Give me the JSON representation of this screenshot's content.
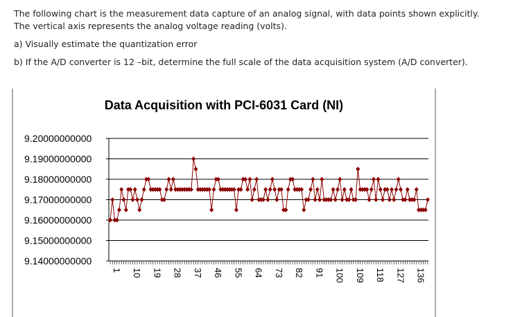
{
  "question": {
    "intro": [
      "The following chart is the measurement data capture of an analog signal, with data points shown explicitly.",
      "The vertical axis represents the analog voltage reading (volts)."
    ],
    "parts": [
      "a) Visually estimate the quantization error",
      "b) If the A/D converter is 12 –bit, determine the full scale of the data acquisition system (A/D converter)."
    ]
  },
  "chart_data": {
    "type": "line",
    "title": "Data Acquisition with PCI-6031 Card (NI)",
    "categories": [
      1,
      null,
      null,
      null,
      null,
      null,
      null,
      null,
      null,
      10,
      null,
      null,
      null,
      null,
      null,
      null,
      null,
      null,
      19,
      null,
      null,
      null,
      null,
      null,
      null,
      null,
      null,
      28,
      null,
      null,
      null,
      null,
      null,
      null,
      null,
      null,
      37,
      null,
      null,
      null,
      null,
      null,
      null,
      null,
      null,
      46,
      null,
      null,
      null,
      null,
      null,
      null,
      null,
      null,
      55,
      null,
      null,
      null,
      null,
      null,
      null,
      null,
      null,
      64,
      null,
      null,
      null,
      null,
      null,
      null,
      null,
      null,
      73,
      null,
      null,
      null,
      null,
      null,
      null,
      null,
      null,
      82,
      null,
      null,
      null,
      null,
      null,
      null,
      null,
      null,
      91,
      null,
      null,
      null,
      null,
      null,
      null,
      null,
      null,
      100,
      null,
      null,
      null,
      null,
      null,
      null,
      null,
      null,
      109,
      null,
      null,
      null,
      null,
      null,
      null,
      null,
      null,
      118,
      null,
      null,
      null,
      null,
      null,
      null,
      null,
      null,
      127,
      null,
      null,
      null,
      null,
      null,
      null,
      null,
      null,
      136,
      null,
      null,
      null,
      null,
      null,
      null
    ],
    "series": [
      {
        "color": "#8b0000",
        "values": [
          9.16,
          9.17,
          9.16,
          9.16,
          9.165,
          9.175,
          9.17,
          9.165,
          9.175,
          9.175,
          9.17,
          9.175,
          9.17,
          9.165,
          9.17,
          9.175,
          9.18,
          9.18,
          9.175,
          9.175,
          9.175,
          9.175,
          9.175,
          9.17,
          9.17,
          9.175,
          9.18,
          9.175,
          9.18,
          9.175,
          9.175,
          9.175,
          9.175,
          9.175,
          9.175,
          9.175,
          9.175,
          9.19,
          9.185,
          9.175,
          9.175,
          9.175,
          9.175,
          9.175,
          9.175,
          9.165,
          9.175,
          9.18,
          9.18,
          9.175,
          9.175,
          9.175,
          9.175,
          9.175,
          9.175,
          9.175,
          9.165,
          9.175,
          9.175,
          9.18,
          9.18,
          9.175,
          9.18,
          9.17,
          9.175,
          9.18,
          9.17,
          9.17,
          9.17,
          9.175,
          9.17,
          9.175,
          9.18,
          9.175,
          9.17,
          9.175,
          9.175,
          9.165,
          9.165,
          9.175,
          9.18,
          9.18,
          9.175,
          9.175,
          9.175,
          9.175,
          9.165,
          9.17,
          9.17,
          9.175,
          9.18,
          9.17,
          9.175,
          9.17,
          9.18,
          9.17,
          9.17,
          9.17,
          9.17,
          9.175,
          9.17,
          9.175,
          9.18,
          9.17,
          9.175,
          9.17,
          9.17,
          9.175,
          9.17,
          9.17,
          9.185,
          9.175,
          9.175,
          9.175,
          9.175,
          9.17,
          9.175,
          9.18,
          9.17,
          9.18,
          9.175,
          9.17,
          9.175,
          9.175,
          9.17,
          9.175,
          9.17,
          9.175,
          9.18,
          9.175,
          9.17,
          9.17,
          9.175,
          9.17,
          9.17,
          9.17,
          9.175,
          9.165,
          9.165,
          9.165,
          9.165,
          9.17
        ]
      }
    ],
    "ylim": [
      9.14,
      9.2
    ],
    "yticks": [
      {
        "value": 9.14,
        "label": "9.14000000000"
      },
      {
        "value": 9.15,
        "label": "9.15000000000"
      },
      {
        "value": 9.16,
        "label": "9.16000000000"
      },
      {
        "value": 9.17,
        "label": "9.17000000000"
      },
      {
        "value": 9.18,
        "label": "9.18000000000"
      },
      {
        "value": 9.19,
        "label": "9.19000000000"
      },
      {
        "value": 9.2,
        "label": "9.20000000000"
      }
    ],
    "grid": true
  }
}
